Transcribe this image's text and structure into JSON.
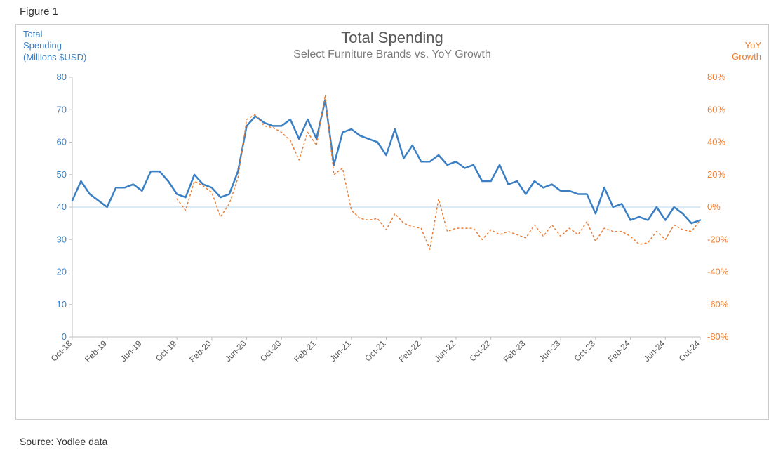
{
  "figure_label": "Figure 1",
  "source": "Source: Yodlee data",
  "chart": {
    "type": "line",
    "title": "Total Spending",
    "subtitle": "Select Furniture Brands vs. YoY Growth",
    "title_color": "#595959",
    "title_fontsize": 22,
    "subtitle_color": "#7a7a7a",
    "subtitle_fontsize": 16,
    "background_color": "#ffffff",
    "border_color": "#cccccc",
    "left_axis": {
      "label": "Total\nSpending\n(Millions $USD)",
      "color": "#3a7fc4",
      "fontsize": 13,
      "ylim": [
        0,
        80
      ],
      "tick_step": 10,
      "ticks": [
        0,
        10,
        20,
        30,
        40,
        50,
        60,
        70,
        80
      ],
      "tick_fontsize": 13
    },
    "right_axis": {
      "label": "YoY\nGrowth",
      "color": "#ed7d31",
      "fontsize": 13,
      "ylim": [
        -80,
        80
      ],
      "tick_step": 20,
      "ticks": [
        -80,
        -60,
        -40,
        -20,
        0,
        20,
        40,
        60,
        80
      ],
      "tick_suffix": "%",
      "tick_fontsize": 13,
      "zero_line_color": "#b7d7ee",
      "zero_line_width": 1
    },
    "x_axis": {
      "label_color": "#595959",
      "label_fontsize": 12,
      "rotation": -45,
      "categories": [
        "Oct-18",
        "Nov-18",
        "Dec-18",
        "Jan-19",
        "Feb-19",
        "Mar-19",
        "Apr-19",
        "May-19",
        "Jun-19",
        "Jul-19",
        "Aug-19",
        "Sep-19",
        "Oct-19",
        "Nov-19",
        "Dec-19",
        "Jan-20",
        "Feb-20",
        "Mar-20",
        "Apr-20",
        "May-20",
        "Jun-20",
        "Jul-20",
        "Aug-20",
        "Sep-20",
        "Oct-20",
        "Nov-20",
        "Dec-20",
        "Jan-21",
        "Feb-21",
        "Mar-21",
        "Apr-21",
        "May-21",
        "Jun-21",
        "Jul-21",
        "Aug-21",
        "Sep-21",
        "Oct-21",
        "Nov-21",
        "Dec-21",
        "Jan-22",
        "Feb-22",
        "Mar-22",
        "Apr-22",
        "May-22",
        "Jun-22",
        "Jul-22",
        "Aug-22",
        "Sep-22",
        "Oct-22",
        "Nov-22",
        "Dec-22",
        "Jan-23",
        "Feb-23",
        "Mar-23",
        "Apr-23",
        "May-23",
        "Jun-23",
        "Jul-23",
        "Aug-23",
        "Sep-23",
        "Oct-23",
        "Nov-23",
        "Dec-23",
        "Jan-24",
        "Feb-24",
        "Mar-24",
        "Apr-24",
        "May-24",
        "Jun-24",
        "Jul-24",
        "Aug-24",
        "Sep-24",
        "Oct-24"
      ],
      "tick_labels": [
        "Oct-18",
        "Feb-19",
        "Jun-19",
        "Oct-19",
        "Feb-20",
        "Jun-20",
        "Oct-20",
        "Feb-21",
        "Jun-21",
        "Oct-21",
        "Feb-22",
        "Jun-22",
        "Oct-22",
        "Feb-23",
        "Jun-23",
        "Oct-23",
        "Feb-24",
        "Jun-24",
        "Oct-24"
      ],
      "tick_every": 4
    },
    "series": [
      {
        "name": "Total Spending",
        "axis": "left",
        "color": "#3a7fc4",
        "line_width": 2.5,
        "dash": "solid",
        "values": [
          42,
          48,
          44,
          42,
          40,
          46,
          46,
          47,
          45,
          51,
          51,
          48,
          44,
          43,
          50,
          47,
          46,
          43,
          44,
          51,
          65,
          68,
          66,
          65,
          65,
          67,
          61,
          67,
          61,
          73,
          53,
          63,
          64,
          62,
          61,
          60,
          56,
          64,
          55,
          59,
          54,
          54,
          56,
          53,
          54,
          52,
          53,
          48,
          48,
          53,
          47,
          48,
          44,
          48,
          46,
          47,
          45,
          45,
          44,
          44,
          38,
          46,
          40,
          41,
          36,
          37,
          36,
          40,
          36,
          40,
          38,
          35,
          36
        ]
      },
      {
        "name": "YoY Growth",
        "axis": "right",
        "color": "#ed7d31",
        "line_width": 1.5,
        "dash": "dotted",
        "values": [
          null,
          null,
          null,
          null,
          null,
          null,
          null,
          null,
          null,
          null,
          null,
          null,
          5,
          -2,
          16,
          13,
          9,
          -6,
          2,
          18,
          54,
          57,
          50,
          49,
          46,
          41,
          29,
          46,
          38,
          69,
          20,
          24,
          -2,
          -7,
          -8,
          -7,
          -14,
          -4,
          -10,
          -12,
          -13,
          -26,
          5,
          -15,
          -13,
          -13,
          -13,
          -20,
          -14,
          -17,
          -15,
          -17,
          -19,
          -11,
          -18,
          -11,
          -18,
          -13,
          -17,
          -9,
          -21,
          -13,
          -15,
          -15,
          -18,
          -23,
          -22,
          -15,
          -20,
          -11,
          -14,
          -15,
          -8
        ]
      }
    ]
  }
}
